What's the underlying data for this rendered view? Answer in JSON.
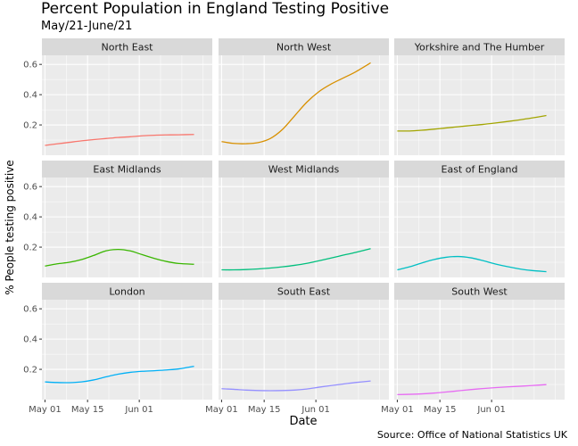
{
  "header": {
    "title": "Percent Population in England Testing Positive",
    "subtitle": "May/21-June/21"
  },
  "footer": {
    "caption": "Source: Office of National Statistics UK"
  },
  "chart_data": {
    "type": "line",
    "layout": "facet_wrap",
    "xlabel": "Date",
    "ylabel": "% People testing positive",
    "x_ticks": [
      "May 01",
      "May 15",
      "Jun 01"
    ],
    "y_ticks": [
      0.2,
      0.4,
      0.6
    ],
    "xlim": [
      "2021-04-30",
      "2021-06-25"
    ],
    "ylim": [
      0.0,
      0.66
    ],
    "grid": true,
    "panel_background": "#EBEBEB",
    "strip_background": "#D9D9D9",
    "x_dates": [
      "2021-05-01",
      "2021-05-05",
      "2021-05-09",
      "2021-05-13",
      "2021-05-17",
      "2021-05-21",
      "2021-05-25",
      "2021-05-29",
      "2021-06-02",
      "2021-06-06",
      "2021-06-10",
      "2021-06-14",
      "2021-06-19"
    ],
    "series": [
      {
        "name": "North East",
        "color": "#F8766D",
        "values": [
          0.065,
          0.075,
          0.085,
          0.095,
          0.103,
          0.11,
          0.117,
          0.122,
          0.128,
          0.132,
          0.134,
          0.135,
          0.137
        ]
      },
      {
        "name": "North West",
        "color": "#D89000",
        "values": [
          0.09,
          0.078,
          0.076,
          0.083,
          0.11,
          0.17,
          0.26,
          0.35,
          0.42,
          0.47,
          0.51,
          0.55,
          0.61
        ]
      },
      {
        "name": "Yorkshire and The Humber",
        "color": "#A3A500",
        "values": [
          0.16,
          0.16,
          0.165,
          0.172,
          0.18,
          0.188,
          0.196,
          0.203,
          0.212,
          0.222,
          0.233,
          0.245,
          0.262
        ]
      },
      {
        "name": "East Midlands",
        "color": "#39B600",
        "values": [
          0.075,
          0.09,
          0.1,
          0.118,
          0.145,
          0.175,
          0.185,
          0.175,
          0.15,
          0.125,
          0.105,
          0.092,
          0.087
        ]
      },
      {
        "name": "West Midlands",
        "color": "#00BF7D",
        "values": [
          0.05,
          0.05,
          0.052,
          0.056,
          0.062,
          0.07,
          0.08,
          0.093,
          0.11,
          0.128,
          0.147,
          0.165,
          0.19
        ]
      },
      {
        "name": "East of England",
        "color": "#00BFC4",
        "values": [
          0.05,
          0.07,
          0.095,
          0.118,
          0.133,
          0.138,
          0.13,
          0.112,
          0.09,
          0.072,
          0.057,
          0.046,
          0.038
        ]
      },
      {
        "name": "London",
        "color": "#00B0F6",
        "values": [
          0.117,
          0.113,
          0.112,
          0.117,
          0.13,
          0.15,
          0.168,
          0.18,
          0.187,
          0.191,
          0.196,
          0.203,
          0.22
        ]
      },
      {
        "name": "South East",
        "color": "#9590FF",
        "values": [
          0.072,
          0.068,
          0.063,
          0.06,
          0.059,
          0.06,
          0.063,
          0.07,
          0.082,
          0.093,
          0.103,
          0.113,
          0.123
        ]
      },
      {
        "name": "South West",
        "color": "#E76BF3",
        "values": [
          0.033,
          0.035,
          0.038,
          0.043,
          0.05,
          0.058,
          0.066,
          0.073,
          0.079,
          0.084,
          0.088,
          0.093,
          0.099
        ]
      }
    ]
  }
}
